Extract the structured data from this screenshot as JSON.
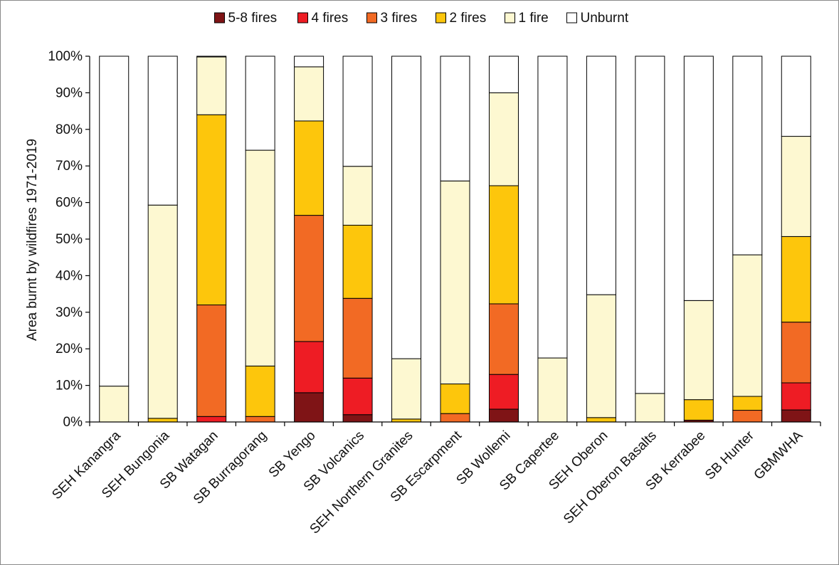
{
  "chart_data": {
    "type": "bar",
    "stacked": true,
    "ylabel": "Area burnt by wildfires 1971-2019",
    "ylim": [
      0,
      100
    ],
    "yticks": [
      "0%",
      "10%",
      "20%",
      "30%",
      "40%",
      "50%",
      "60%",
      "70%",
      "80%",
      "90%",
      "100%"
    ],
    "legend_position": "top",
    "categories": [
      "SEH Kanangra",
      "SEH Bungonia",
      "SB Watagan",
      "SB Burragorang",
      "SB Yengo",
      "SB Volcanics",
      "SEH Northern Granites",
      "SB Escarpment",
      "SB Wollemi",
      "SB Capertee",
      "SEH Oberon",
      "SEH Oberon Basalts",
      "SB Kerrabee",
      "SB Hunter",
      "GBMWHA"
    ],
    "series": [
      {
        "name": "5-8 fires",
        "color": "#7f1416",
        "values": [
          0,
          0,
          0,
          0,
          8,
          2,
          0,
          0,
          3.5,
          0,
          0,
          0,
          0.5,
          0,
          3.3
        ]
      },
      {
        "name": "4 fires",
        "color": "#ee1c24",
        "values": [
          0,
          0,
          1.5,
          0,
          14,
          10,
          0,
          0,
          9.5,
          0,
          0,
          0,
          0,
          0,
          7.4
        ]
      },
      {
        "name": "3 fires",
        "color": "#f26a24",
        "values": [
          0,
          0,
          30.5,
          1.5,
          34.5,
          21.8,
          0,
          2.3,
          19.3,
          0,
          0,
          0,
          0,
          3.2,
          16.6
        ]
      },
      {
        "name": "2 fires",
        "color": "#fdc60c",
        "values": [
          0,
          1,
          52,
          13.8,
          25.8,
          20,
          0.8,
          8.1,
          32.3,
          0,
          1.2,
          0,
          5.6,
          3.8,
          23.4
        ]
      },
      {
        "name": "1 fire",
        "color": "#fdf8d1",
        "values": [
          9.8,
          58.3,
          15.8,
          59,
          14.8,
          16.1,
          16.5,
          55.5,
          25.4,
          17.5,
          33.6,
          7.8,
          27.1,
          38.7,
          27.4
        ]
      },
      {
        "name": "Unburnt",
        "color": "#ffffff",
        "values": [
          90.2,
          40.7,
          0.2,
          25.7,
          2.9,
          30.1,
          82.7,
          34.1,
          10,
          82.5,
          65.2,
          92.2,
          66.8,
          54.3,
          21.9
        ]
      }
    ]
  }
}
